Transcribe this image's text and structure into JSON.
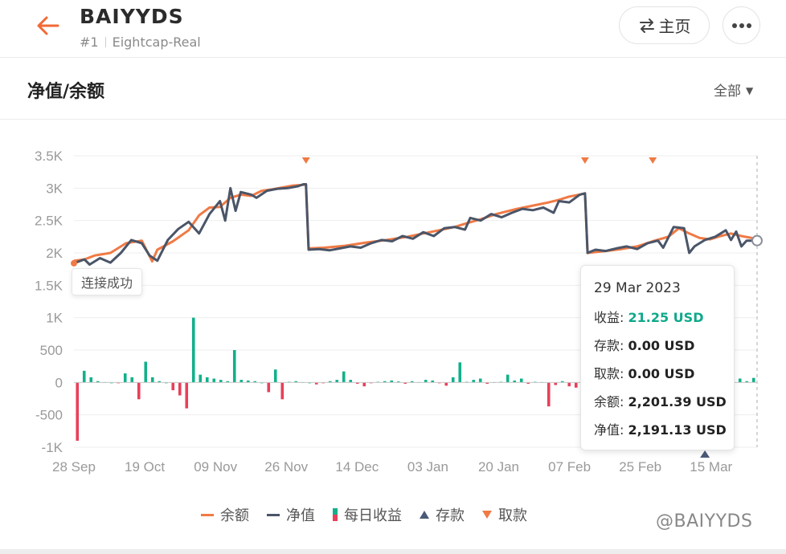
{
  "header": {
    "title": "BAIYYDS",
    "rank": "#1",
    "broker": "Eightcap-Real",
    "home_label": "主页",
    "back_icon": "arrow-left-icon",
    "more_icon": "more-dots-icon"
  },
  "section": {
    "title": "净值/余额",
    "range_label": "全部"
  },
  "colors": {
    "accent": "#f06a35",
    "balance": "#f07a45",
    "equity": "#4a5568",
    "profit_pos": "#12b08a",
    "profit_neg": "#e8405a",
    "deposit": "#4a5a78",
    "withdraw": "#f07a45"
  },
  "toast": "连接成功",
  "tooltip": {
    "date": "29 Mar 2023",
    "profit_label": "收益",
    "profit_value": "21.25 USD",
    "deposit_label": "存款",
    "deposit_value": "0.00 USD",
    "withdraw_label": "取款",
    "withdraw_value": "0.00 USD",
    "balance_label": "余额",
    "balance_value": "2,201.39 USD",
    "equity_label": "净值",
    "equity_value": "2,191.13 USD"
  },
  "legend": {
    "balance": "余额",
    "equity": "净值",
    "daily": "每日收益",
    "deposit": "存款",
    "withdraw": "取款"
  },
  "watermark": "@BAIYYDS",
  "chart_data": {
    "type": "line",
    "y_ticks": [
      "3.5K",
      "3K",
      "2.5K",
      "2K",
      "1.5K",
      "1K",
      "500",
      "0",
      "-500",
      "-1K"
    ],
    "ylim": [
      -1000,
      3500
    ],
    "x_ticks": [
      "28 Sep",
      "19 Oct",
      "09 Nov",
      "26 Nov",
      "14 Dec",
      "03 Jan",
      "20 Jan",
      "07 Feb",
      "25 Feb",
      "15 Mar"
    ],
    "x_count": 183,
    "series": [
      {
        "name": "余额",
        "points": [
          [
            0,
            1880
          ],
          [
            4,
            1900
          ],
          [
            8,
            1960
          ],
          [
            14,
            2000
          ],
          [
            20,
            2150
          ],
          [
            26,
            2190
          ],
          [
            30,
            1870
          ],
          [
            32,
            2050
          ],
          [
            38,
            2180
          ],
          [
            44,
            2350
          ],
          [
            48,
            2580
          ],
          [
            52,
            2700
          ],
          [
            56,
            2710
          ],
          [
            60,
            2850
          ],
          [
            64,
            2900
          ],
          [
            68,
            2880
          ],
          [
            72,
            2960
          ],
          [
            76,
            2980
          ],
          [
            80,
            3010
          ],
          [
            84,
            3040
          ],
          [
            88,
            3050
          ],
          [
            89,
            3060
          ],
          [
            90,
            2070
          ],
          [
            96,
            2080
          ],
          [
            104,
            2110
          ],
          [
            112,
            2160
          ],
          [
            120,
            2200
          ],
          [
            128,
            2250
          ],
          [
            134,
            2300
          ],
          [
            140,
            2350
          ],
          [
            146,
            2400
          ],
          [
            150,
            2450
          ],
          [
            156,
            2520
          ],
          [
            162,
            2600
          ],
          [
            170,
            2680
          ],
          [
            176,
            2730
          ],
          [
            182,
            2780
          ],
          [
            186,
            2820
          ],
          [
            190,
            2870
          ],
          [
            194,
            2900
          ],
          [
            196,
            2920
          ],
          [
            197,
            2000
          ],
          [
            204,
            2030
          ],
          [
            210,
            2060
          ],
          [
            216,
            2100
          ],
          [
            222,
            2180
          ],
          [
            228,
            2250
          ],
          [
            232,
            2380
          ],
          [
            236,
            2300
          ],
          [
            240,
            2230
          ],
          [
            244,
            2210
          ],
          [
            248,
            2260
          ],
          [
            252,
            2300
          ],
          [
            256,
            2260
          ],
          [
            260,
            2230
          ],
          [
            262,
            2200
          ]
        ]
      },
      {
        "name": "净值",
        "points": [
          [
            0,
            1840
          ],
          [
            4,
            1900
          ],
          [
            6,
            1820
          ],
          [
            10,
            1920
          ],
          [
            14,
            1850
          ],
          [
            18,
            2000
          ],
          [
            22,
            2200
          ],
          [
            26,
            2150
          ],
          [
            29,
            1960
          ],
          [
            32,
            1880
          ],
          [
            36,
            2200
          ],
          [
            40,
            2370
          ],
          [
            44,
            2480
          ],
          [
            48,
            2300
          ],
          [
            52,
            2600
          ],
          [
            56,
            2800
          ],
          [
            58,
            2500
          ],
          [
            60,
            3000
          ],
          [
            62,
            2650
          ],
          [
            64,
            2940
          ],
          [
            68,
            2900
          ],
          [
            70,
            2850
          ],
          [
            74,
            2960
          ],
          [
            78,
            2990
          ],
          [
            82,
            3000
          ],
          [
            86,
            3030
          ],
          [
            88,
            3060
          ],
          [
            89,
            3060
          ],
          [
            90,
            2050
          ],
          [
            94,
            2060
          ],
          [
            98,
            2040
          ],
          [
            102,
            2070
          ],
          [
            106,
            2100
          ],
          [
            110,
            2080
          ],
          [
            114,
            2150
          ],
          [
            118,
            2200
          ],
          [
            122,
            2180
          ],
          [
            126,
            2260
          ],
          [
            130,
            2220
          ],
          [
            134,
            2320
          ],
          [
            138,
            2260
          ],
          [
            142,
            2380
          ],
          [
            146,
            2400
          ],
          [
            150,
            2360
          ],
          [
            152,
            2540
          ],
          [
            156,
            2500
          ],
          [
            160,
            2600
          ],
          [
            164,
            2550
          ],
          [
            168,
            2620
          ],
          [
            172,
            2680
          ],
          [
            176,
            2660
          ],
          [
            180,
            2700
          ],
          [
            184,
            2620
          ],
          [
            186,
            2800
          ],
          [
            190,
            2780
          ],
          [
            194,
            2900
          ],
          [
            196,
            2920
          ],
          [
            197,
            2000
          ],
          [
            200,
            2050
          ],
          [
            204,
            2030
          ],
          [
            208,
            2070
          ],
          [
            212,
            2100
          ],
          [
            216,
            2060
          ],
          [
            220,
            2150
          ],
          [
            224,
            2190
          ],
          [
            226,
            2080
          ],
          [
            230,
            2400
          ],
          [
            234,
            2380
          ],
          [
            236,
            2000
          ],
          [
            238,
            2100
          ],
          [
            242,
            2200
          ],
          [
            246,
            2250
          ],
          [
            250,
            2350
          ],
          [
            252,
            2200
          ],
          [
            254,
            2330
          ],
          [
            256,
            2100
          ],
          [
            258,
            2190
          ],
          [
            262,
            2190
          ]
        ]
      }
    ],
    "daily_profit": [
      -900,
      180,
      80,
      20,
      5,
      0,
      -10,
      140,
      80,
      -260,
      320,
      80,
      20,
      0,
      -120,
      -200,
      -400,
      1000,
      120,
      80,
      60,
      40,
      20,
      500,
      40,
      30,
      20,
      0,
      -150,
      200,
      -260,
      10,
      20,
      5,
      0,
      -30,
      -10,
      20,
      40,
      170,
      40,
      -20,
      -60,
      -10,
      10,
      20,
      30,
      15,
      -20,
      20,
      5,
      40,
      30,
      -10,
      -50,
      80,
      310,
      10,
      40,
      60,
      -20,
      5,
      10,
      120,
      30,
      60,
      -20,
      10,
      5,
      -370,
      -40,
      20,
      -60,
      -80,
      50,
      10,
      20,
      80,
      40,
      -70,
      30,
      10,
      60,
      20,
      270,
      10,
      -10,
      -50,
      20,
      40,
      90,
      -160,
      10,
      -80,
      -10,
      20,
      30,
      60,
      20,
      70
    ],
    "deposits": [
      {
        "x": 242,
        "value": 0
      }
    ],
    "withdrawals": [
      {
        "x": 89
      },
      {
        "x": 196
      },
      {
        "x": 222
      }
    ],
    "hover_index": 262,
    "legend_entries": [
      "余额",
      "净值",
      "每日收益",
      "存款",
      "取款"
    ]
  }
}
